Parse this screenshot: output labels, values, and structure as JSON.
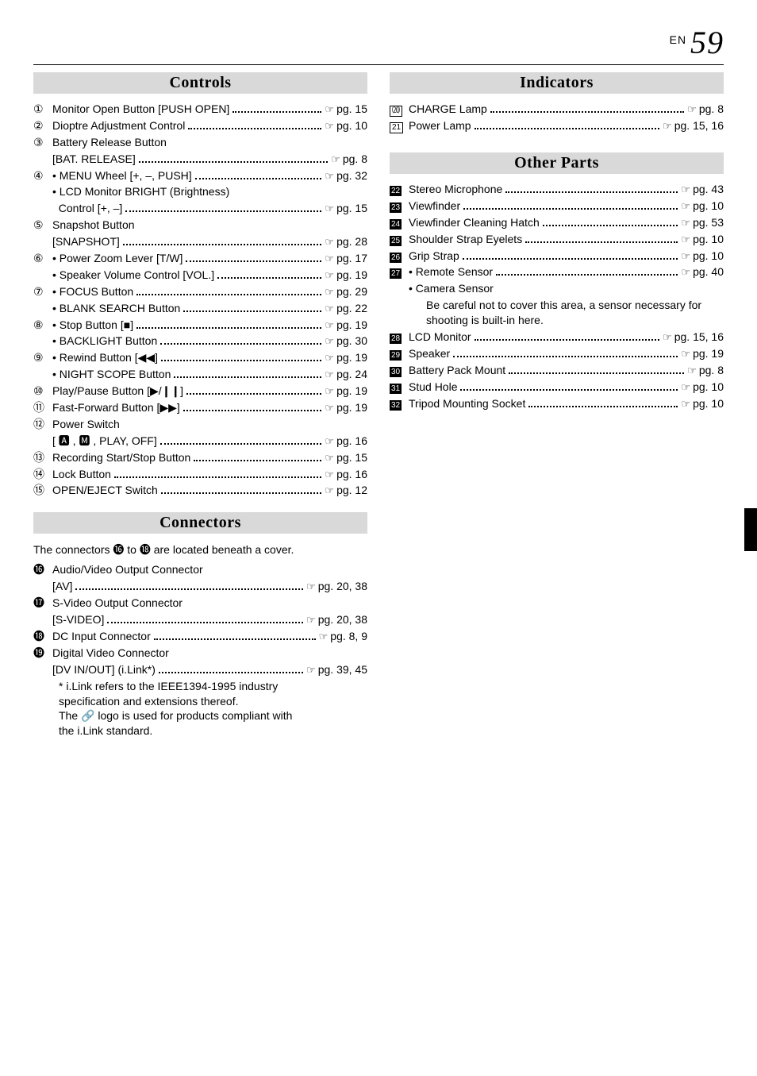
{
  "page": {
    "prefix": "EN",
    "number": "59"
  },
  "sections": {
    "controls": {
      "title": "Controls",
      "items": [
        {
          "marker": "①",
          "label": "Monitor Open Button [PUSH OPEN]",
          "pg": "pg. 15"
        },
        {
          "marker": "②",
          "label": "Dioptre Adjustment Control",
          "pg": "pg. 10"
        },
        {
          "marker": "③",
          "label": "Battery Release Button",
          "nopg": true
        },
        {
          "marker": "",
          "sub": true,
          "label": "[BAT. RELEASE]",
          "pg": "pg. 8"
        },
        {
          "marker": "④",
          "label": "• MENU Wheel [+, –, PUSH]",
          "pg": "pg. 32"
        },
        {
          "marker": "",
          "sub": true,
          "label": "• LCD Monitor BRIGHT (Brightness)",
          "nopg": true
        },
        {
          "marker": "",
          "sub": true,
          "label": "  Control [+, –]",
          "pg": "pg. 15"
        },
        {
          "marker": "⑤",
          "label": "Snapshot Button",
          "nopg": true
        },
        {
          "marker": "",
          "sub": true,
          "label": "[SNAPSHOT]",
          "pg": "pg. 28"
        },
        {
          "marker": "⑥",
          "label": "• Power Zoom Lever [T/W]",
          "pg": "pg. 17"
        },
        {
          "marker": "",
          "sub": true,
          "label": "• Speaker Volume Control [VOL.]",
          "pg": "pg. 19"
        },
        {
          "marker": "⑦",
          "label": "• FOCUS Button",
          "pg": "pg. 29"
        },
        {
          "marker": "",
          "sub": true,
          "label": "• BLANK SEARCH Button",
          "pg": "pg. 22"
        },
        {
          "marker": "⑧",
          "label": "• Stop Button [■]",
          "pg": "pg. 19"
        },
        {
          "marker": "",
          "sub": true,
          "label": "• BACKLIGHT Button",
          "pg": "pg. 30"
        },
        {
          "marker": "⑨",
          "label": "• Rewind Button [◀◀]",
          "pg": "pg. 19"
        },
        {
          "marker": "",
          "sub": true,
          "label": "• NIGHT SCOPE Button",
          "pg": "pg. 24"
        },
        {
          "marker": "⑩",
          "label": "Play/Pause Button [▶/❙❙]",
          "pg": "pg. 19"
        },
        {
          "marker": "⑪",
          "label": "Fast-Forward Button [▶▶]",
          "pg": "pg. 19"
        },
        {
          "marker": "⑫",
          "label": "Power Switch",
          "nopg": true
        },
        {
          "marker": "",
          "sub": true,
          "label": "[ 🅰 , 🅼 , PLAY, OFF]",
          "pg": "pg. 16"
        },
        {
          "marker": "⑬",
          "label": "Recording Start/Stop Button",
          "pg": "pg. 15"
        },
        {
          "marker": "⑭",
          "label": "Lock Button",
          "pg": "pg. 16"
        },
        {
          "marker": "⑮",
          "label": "OPEN/EJECT Switch",
          "pg": "pg. 12"
        }
      ]
    },
    "connectors": {
      "title": "Connectors",
      "pretext": "The connectors ⓰ to ⓲ are located beneath a cover.",
      "items": [
        {
          "marker": "⓰",
          "label": "Audio/Video Output Connector",
          "nopg": true
        },
        {
          "marker": "",
          "sub": true,
          "label": "[AV]",
          "pg": "pg. 20, 38"
        },
        {
          "marker": "⓱",
          "label": "S-Video Output Connector",
          "nopg": true
        },
        {
          "marker": "",
          "sub": true,
          "label": "[S-VIDEO]",
          "pg": "pg. 20, 38"
        },
        {
          "marker": "⓲",
          "label": "DC Input Connector",
          "pg": "pg. 8, 9"
        },
        {
          "marker": "⓳",
          "label": "Digital Video Connector",
          "nopg": true
        },
        {
          "marker": "",
          "sub": true,
          "label": "[DV IN/OUT] (i.Link*)",
          "pg": "pg. 39, 45"
        }
      ],
      "footnote": "* i.Link refers to the IEEE1394-1995 industry\nspecification and extensions thereof.\nThe 🔗 logo is used for products compliant with\nthe i.Link standard."
    },
    "indicators": {
      "title": "Indicators",
      "items": [
        {
          "marker": "⒇",
          "boxed": true,
          "label": "CHARGE Lamp",
          "pg": "pg. 8"
        },
        {
          "marker": "21",
          "boxed": true,
          "label": "Power Lamp",
          "pg": "pg. 15, 16"
        }
      ]
    },
    "other": {
      "title": "Other Parts",
      "items": [
        {
          "marker": "22",
          "filled": true,
          "label": "Stereo Microphone",
          "pg": "pg. 43"
        },
        {
          "marker": "23",
          "filled": true,
          "label": "Viewfinder",
          "pg": "pg. 10"
        },
        {
          "marker": "24",
          "filled": true,
          "label": "Viewfinder Cleaning Hatch",
          "pg": "pg. 53"
        },
        {
          "marker": "25",
          "filled": true,
          "label": "Shoulder Strap Eyelets",
          "pg": "pg. 10"
        },
        {
          "marker": "26",
          "filled": true,
          "label": "Grip Strap",
          "pg": "pg. 10"
        },
        {
          "marker": "27",
          "filled": true,
          "label": "• Remote Sensor",
          "pg": "pg. 40"
        },
        {
          "marker": "",
          "sub": true,
          "label": "• Camera Sensor",
          "nopg": true
        },
        {
          "note": "Be careful not to cover this area, a sensor necessary for shooting is built-in here."
        },
        {
          "marker": "28",
          "filled": true,
          "label": "LCD Monitor",
          "pg": "pg. 15, 16"
        },
        {
          "marker": "29",
          "filled": true,
          "label": "Speaker",
          "pg": "pg. 19"
        },
        {
          "marker": "30",
          "filled": true,
          "label": "Battery Pack Mount",
          "pg": "pg. 8"
        },
        {
          "marker": "31",
          "filled": true,
          "label": "Stud Hole",
          "pg": "pg. 10"
        },
        {
          "marker": "32",
          "filled": true,
          "label": "Tripod Mounting Socket",
          "pg": "pg. 10"
        }
      ]
    }
  },
  "icons": {
    "pageref": "☞"
  }
}
